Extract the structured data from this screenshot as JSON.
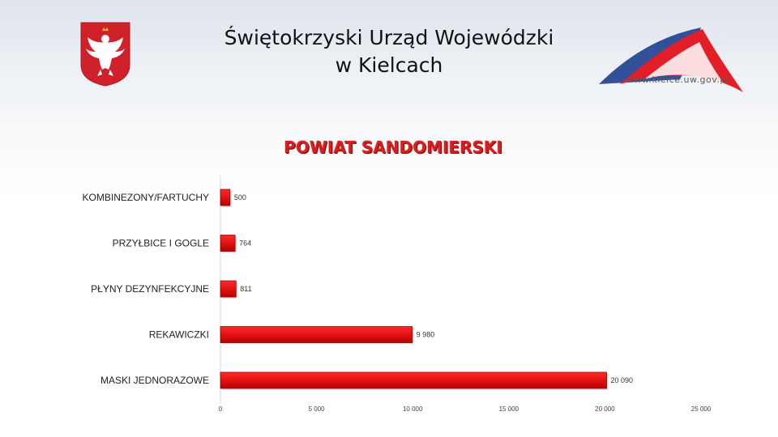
{
  "header": {
    "title_line1": "Świętokrzyski Urząd Wojewódzki",
    "title_line2": "w Kielcach",
    "logo_url": "www.kielce.uw.gov.pl"
  },
  "colors": {
    "bar_fill": "#e01010",
    "bar_dark": "#9a0000",
    "title_red": "#d81f1f",
    "emblem_red": "#d0202a"
  },
  "chart_data": {
    "type": "bar",
    "orientation": "horizontal",
    "title": "POWIAT SANDOMIERSKI",
    "categories": [
      "KOMBINEZONY/FARTUCHY",
      "PRZYŁBICE I GOGLE",
      "PŁYNY DEZYNFEKCYJNE",
      "REKAWICZKI",
      "MASKI JEDNORAZOWE"
    ],
    "values": [
      500,
      764,
      811,
      9980,
      20090
    ],
    "value_labels": [
      "500",
      "764",
      "811",
      "9 980",
      "20 090"
    ],
    "xlim": [
      0,
      25000
    ],
    "xticks": [
      0,
      5000,
      10000,
      15000,
      20000,
      25000
    ],
    "xtick_labels": [
      "0",
      "5 000",
      "10 000",
      "15 000",
      "20 000",
      "25 000"
    ],
    "grid": false,
    "legend": "none"
  }
}
